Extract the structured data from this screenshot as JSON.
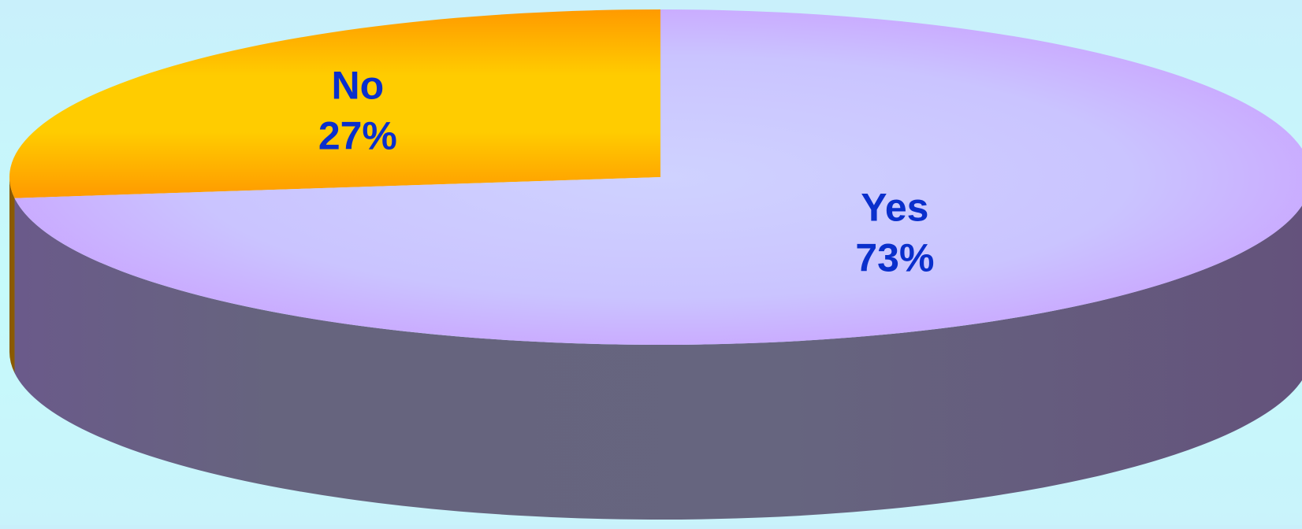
{
  "chart_data": {
    "type": "pie",
    "style": "3d",
    "title": "",
    "slices": [
      {
        "label": "No",
        "value": 27,
        "value_label": "27%",
        "color_top": "#ffcc00",
        "color_edge": "#ff9900",
        "color_side": "#8a5a00"
      },
      {
        "label": "Yes",
        "value": 73,
        "value_label": "73%",
        "color_top": "#ccccff",
        "color_edge": "#cc99ff",
        "color_side": "#66607a"
      }
    ],
    "label_color": "#0a2fcc",
    "start_angle_deg": 90,
    "direction": "counterclockwise",
    "legend": "none"
  }
}
